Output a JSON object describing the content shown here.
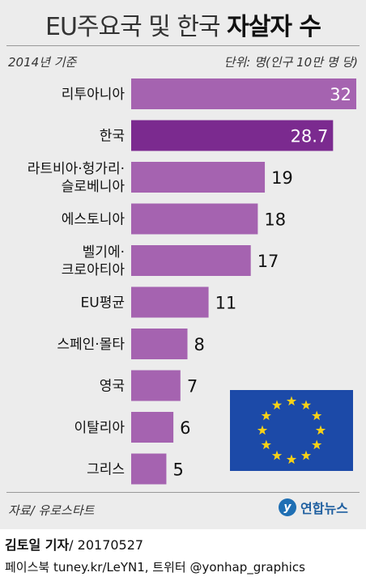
{
  "header": {
    "title_light": "EU주요국 및 한국",
    "title_bold": "자살자 수",
    "base_year": "2014년 기준",
    "unit": "단위: 명(인구 10만 명 당)"
  },
  "footer": {
    "source": "자료/ 유로스타트",
    "logo_text": "연합뉴스",
    "author": "김토일 기자",
    "date": "/ 20170527",
    "social": "페이스북 tuney.kr/LeYN1, 트위터 @yonhap_graphics"
  },
  "colors": {
    "bar": "#a563b0",
    "highlight": "#7b2a8f",
    "eu_flag_blue": "#1c4aa8",
    "eu_flag_star": "#f7d117"
  },
  "chart_data": {
    "type": "bar",
    "orientation": "horizontal",
    "title": "EU주요국 및 한국 자살자 수",
    "categories": [
      "리투아니아",
      "한국",
      "라트비아·헝가리·슬로베니아",
      "에스토니아",
      "벨기에·크로아티아",
      "EU평균",
      "스페인·몰타",
      "영국",
      "이탈리아",
      "그리스"
    ],
    "category_lines": [
      [
        "리투아니아"
      ],
      [
        "한국"
      ],
      [
        "라트비아·헝가리·",
        "슬로베니아"
      ],
      [
        "에스토니아"
      ],
      [
        "벨기에·",
        "크로아티아"
      ],
      [
        "EU평균"
      ],
      [
        "스페인·몰타"
      ],
      [
        "영국"
      ],
      [
        "이탈리아"
      ],
      [
        "그리스"
      ]
    ],
    "values": [
      32,
      28.7,
      19,
      18,
      17,
      11,
      8,
      7,
      6,
      5
    ],
    "value_labels": [
      "32",
      "28.7",
      "19",
      "18",
      "17",
      "11",
      "8",
      "7",
      "6",
      "5"
    ],
    "highlight_index": 1,
    "xlim": [
      0,
      32
    ],
    "grid": false,
    "legend": "none"
  }
}
